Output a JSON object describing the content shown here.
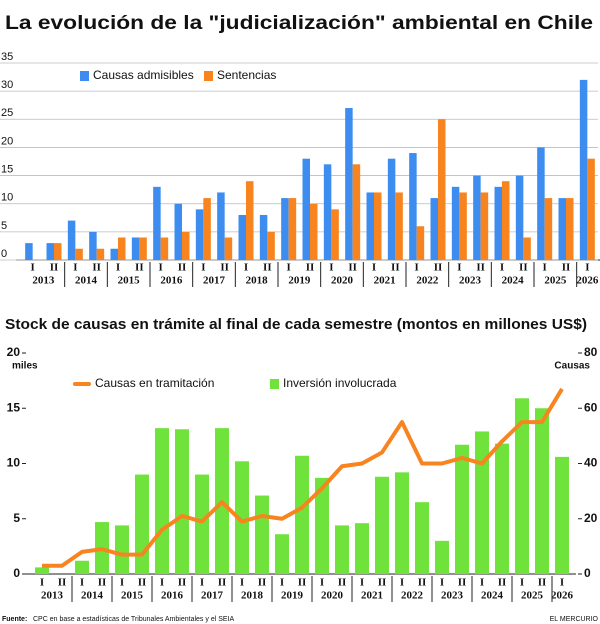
{
  "chart_data": [
    {
      "type": "bar",
      "title": "La evolución de la \"judicialización\" ambiental en Chile",
      "categories": [
        "I",
        "II",
        "I",
        "II",
        "I",
        "II",
        "I",
        "II",
        "I",
        "II",
        "I",
        "II",
        "I",
        "II",
        "I",
        "II",
        "I",
        "II",
        "I",
        "II",
        "I",
        "II",
        "I",
        "II",
        "I",
        "II",
        "I"
      ],
      "years": [
        "2013",
        "2014",
        "2015",
        "2016",
        "2017",
        "2018",
        "2019",
        "2020",
        "2021",
        "2022",
        "2023",
        "2024",
        "2025",
        "2026"
      ],
      "series": [
        {
          "name": "Causas admisibles",
          "color": "#3d8df0",
          "values": [
            3,
            3,
            7,
            5,
            2,
            4,
            13,
            10,
            9,
            12,
            8,
            8,
            11,
            18,
            17,
            27,
            12,
            18,
            19,
            11,
            13,
            15,
            13,
            15,
            20,
            11,
            32
          ]
        },
        {
          "name": "Sentencias",
          "color": "#f7841f",
          "values": [
            null,
            3,
            2,
            2,
            4,
            4,
            4,
            5,
            11,
            4,
            14,
            5,
            11,
            10,
            9,
            17,
            12,
            12,
            6,
            25,
            12,
            12,
            14,
            4,
            11,
            11,
            18
          ]
        }
      ],
      "ylim": [
        0,
        35
      ],
      "yticks": [
        0,
        5,
        10,
        15,
        20,
        25,
        30,
        35
      ],
      "grid": true
    },
    {
      "type": "combo",
      "title": "Stock de causas en trámite al final de cada semestre (montos en millones US$)",
      "y_label": "miles",
      "y2_label": "Causas",
      "categories": [
        "I",
        "II",
        "I",
        "II",
        "I",
        "II",
        "I",
        "II",
        "I",
        "II",
        "I",
        "II",
        "I",
        "II",
        "I",
        "II",
        "I",
        "II",
        "I",
        "II",
        "I",
        "II",
        "I",
        "II",
        "I",
        "II",
        "I"
      ],
      "years": [
        "2013",
        "2014",
        "2015",
        "2016",
        "2017",
        "2018",
        "2019",
        "2020",
        "2021",
        "2022",
        "2023",
        "2024",
        "2025",
        "2026"
      ],
      "series": [
        {
          "name": "Causas en tramitación",
          "type": "line",
          "axis": "y2",
          "color": "#f7841f",
          "values": [
            3,
            3,
            8,
            9,
            7,
            7,
            16,
            21,
            19,
            26,
            19,
            21,
            20,
            24,
            31,
            39,
            40,
            44,
            55,
            40,
            40,
            42,
            40,
            48,
            55,
            55,
            67
          ]
        },
        {
          "name": "Inversión involucrada",
          "type": "bar",
          "color": "#6fe33b",
          "values": [
            0.6,
            null,
            1.2,
            4.7,
            4.4,
            9.0,
            13.2,
            13.1,
            9.0,
            13.2,
            10.2,
            7.1,
            3.6,
            10.7,
            8.7,
            4.4,
            4.6,
            8.8,
            9.2,
            6.5,
            3.0,
            11.7,
            12.9,
            11.8,
            15.9,
            15.0,
            10.6
          ]
        }
      ],
      "ylim": [
        0,
        20
      ],
      "yticks": [
        0,
        5,
        10,
        15,
        20
      ],
      "y2lim": [
        0,
        80
      ],
      "y2ticks": [
        0,
        20,
        40,
        60,
        80
      ],
      "grid": false
    }
  ],
  "source_label": "Fuente:",
  "source": "CPC en base a estadísticas de Tribunales Ambientales y el SEIA",
  "credit": "EL MERCURIO"
}
